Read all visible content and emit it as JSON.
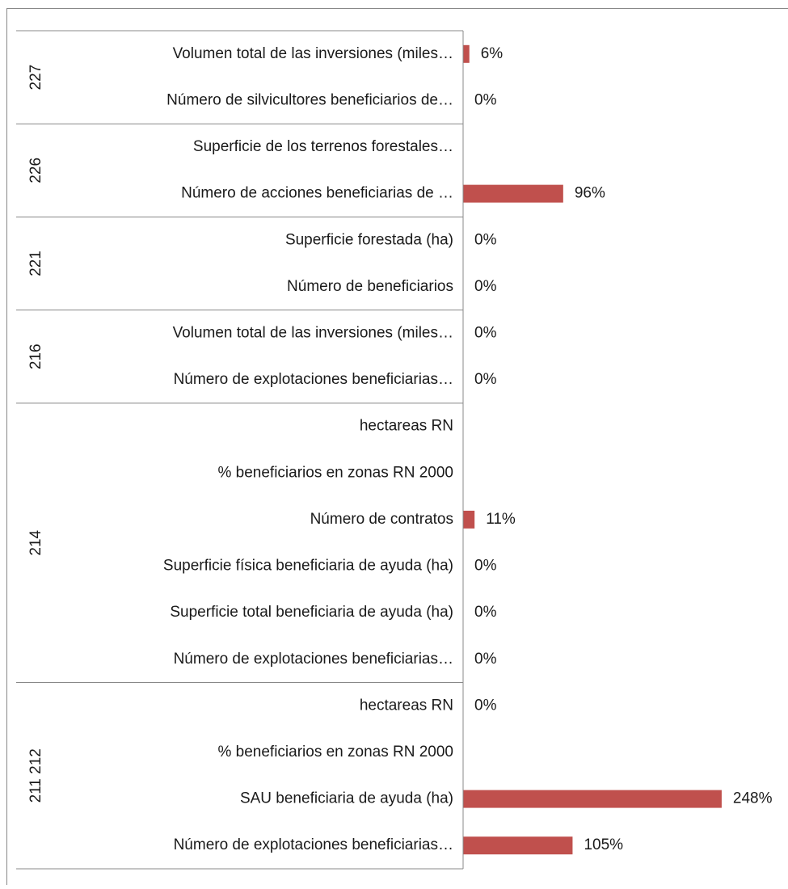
{
  "chart_data": {
    "type": "bar",
    "orientation": "horizontal",
    "color": "#c0504d",
    "xlim": [
      0,
      300
    ],
    "groups": [
      {
        "name": "227",
        "categories": [
          "Volumen total de las inversiones (miles…",
          "Número de silvicultores beneficiarios de…"
        ],
        "values": [
          6,
          0
        ],
        "value_labels": [
          "6%",
          "0%"
        ]
      },
      {
        "name": "226",
        "categories": [
          "Superficie de los terrenos forestales…",
          "Número de acciones beneficiarias de …"
        ],
        "values": [
          null,
          96
        ],
        "value_labels": [
          null,
          "96%"
        ]
      },
      {
        "name": "221",
        "categories": [
          "Superficie forestada (ha)",
          "Número de beneficiarios"
        ],
        "values": [
          0,
          0
        ],
        "value_labels": [
          "0%",
          "0%"
        ]
      },
      {
        "name": "216",
        "categories": [
          "Volumen total de las inversiones (miles…",
          "Número de explotaciones beneficiarias…"
        ],
        "values": [
          0,
          0
        ],
        "value_labels": [
          "0%",
          "0%"
        ]
      },
      {
        "name": "214",
        "categories": [
          "hectareas RN",
          "% beneficiarios en zonas RN 2000",
          "Número de contratos",
          "Superficie física beneficiaria de ayuda (ha)",
          "Superficie total beneficiaria de ayuda (ha)",
          "Número de explotaciones beneficiarias…"
        ],
        "values": [
          null,
          null,
          11,
          0,
          0,
          0
        ],
        "value_labels": [
          null,
          null,
          "11%",
          "0%",
          "0%",
          "0%"
        ]
      },
      {
        "name": "211 212",
        "categories": [
          "hectareas RN",
          "% beneficiarios en zonas RN 2000",
          "SAU beneficiaria de ayuda (ha)",
          "Número de explotaciones beneficiarias…"
        ],
        "values": [
          0,
          null,
          248,
          105
        ],
        "value_labels": [
          "0%",
          null,
          "248%",
          "105%"
        ]
      }
    ]
  }
}
